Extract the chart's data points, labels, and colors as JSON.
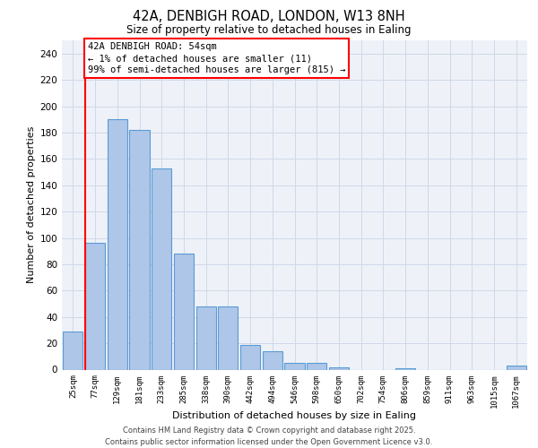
{
  "title_line1": "42A, DENBIGH ROAD, LONDON, W13 8NH",
  "title_line2": "Size of property relative to detached houses in Ealing",
  "xlabel": "Distribution of detached houses by size in Ealing",
  "ylabel": "Number of detached properties",
  "categories": [
    "25sqm",
    "77sqm",
    "129sqm",
    "181sqm",
    "233sqm",
    "285sqm",
    "338sqm",
    "390sqm",
    "442sqm",
    "494sqm",
    "546sqm",
    "598sqm",
    "650sqm",
    "702sqm",
    "754sqm",
    "806sqm",
    "859sqm",
    "911sqm",
    "963sqm",
    "1015sqm",
    "1067sqm"
  ],
  "values": [
    29,
    96,
    190,
    182,
    153,
    88,
    48,
    48,
    19,
    14,
    5,
    5,
    2,
    0,
    0,
    1,
    0,
    0,
    0,
    0,
    3
  ],
  "bar_color": "#aec6e8",
  "bar_edge_color": "#5b9bd5",
  "grid_color": "#d0d8e8",
  "background_color": "#eef2f8",
  "annotation_line1": "42A DENBIGH ROAD: 54sqm",
  "annotation_line2": "← 1% of detached houses are smaller (11)",
  "annotation_line3": "99% of semi-detached houses are larger (815) →",
  "ylim": [
    0,
    250
  ],
  "yticks": [
    0,
    20,
    40,
    60,
    80,
    100,
    120,
    140,
    160,
    180,
    200,
    220,
    240
  ],
  "red_line_x": 0.56,
  "footer_line1": "Contains HM Land Registry data © Crown copyright and database right 2025.",
  "footer_line2": "Contains public sector information licensed under the Open Government Licence v3.0."
}
